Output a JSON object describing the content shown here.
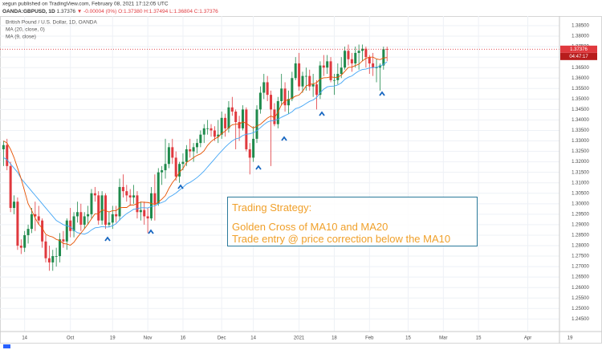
{
  "header": {
    "published": "xegun published on TradingView.com, February 08, 2021 17:12:05 UTC",
    "symbol": "OANDA:GBPUSD, 1D",
    "last": "1.37376",
    "change": "▼ -0.00004 (0%)",
    "ohlc": "O:1.37380 H:1.37494 L:1.36804 C:1.37376"
  },
  "annotation": {
    "title": "Trading Strategy:",
    "lines": [
      "Golden Cross of MA10 and MA20",
      "Trade entry @ price correction below the MA10"
    ]
  },
  "chart_data": {
    "type": "candlestick",
    "title": "British Pound / U.S. Dollar, 1D, OANDA",
    "up_color": "#1f8a4c",
    "down_color": "#e0393e",
    "grid": true,
    "last_price_label": "1.37376",
    "countdown": "04:47:17",
    "open": [
      1.326,
      1.328,
      1.318,
      1.298,
      1.301,
      1.28,
      1.279,
      1.285,
      1.288,
      1.295,
      1.294,
      1.292,
      1.282,
      1.274,
      1.272,
      1.275,
      1.275,
      1.283,
      1.282,
      1.292,
      1.287,
      1.294,
      1.296,
      1.29,
      1.294,
      1.295,
      1.305,
      1.304,
      1.292,
      1.304,
      1.29,
      1.291,
      1.295,
      1.294,
      1.308,
      1.306,
      1.304,
      1.303,
      1.304,
      1.296,
      1.297,
      1.294,
      1.293,
      1.305,
      1.3,
      1.315,
      1.316,
      1.319,
      1.327,
      1.322,
      1.313,
      1.319,
      1.32,
      1.326,
      1.325,
      1.327,
      1.329,
      1.333,
      1.336,
      1.336,
      1.335,
      1.332,
      1.333,
      1.341,
      1.336,
      1.346,
      1.344,
      1.339,
      1.336,
      1.345,
      1.326,
      1.322,
      1.331,
      1.345,
      1.353,
      1.358,
      1.352,
      1.345,
      1.338,
      1.349,
      1.355,
      1.347,
      1.35,
      1.36,
      1.367,
      1.356,
      1.361,
      1.361,
      1.356,
      1.357,
      1.352,
      1.366,
      1.365,
      1.368,
      1.359,
      1.359,
      1.362,
      1.365,
      1.373,
      1.369,
      1.367,
      1.372,
      1.373,
      1.374,
      1.37,
      1.367,
      1.365,
      1.365,
      1.366,
      1.3738
    ],
    "high": [
      1.33,
      1.331,
      1.32,
      1.304,
      1.303,
      1.283,
      1.287,
      1.29,
      1.298,
      1.301,
      1.299,
      1.293,
      1.285,
      1.28,
      1.278,
      1.279,
      1.286,
      1.287,
      1.293,
      1.298,
      1.296,
      1.301,
      1.3,
      1.296,
      1.299,
      1.307,
      1.308,
      1.306,
      1.306,
      1.305,
      1.296,
      1.299,
      1.299,
      1.312,
      1.314,
      1.309,
      1.307,
      1.309,
      1.306,
      1.301,
      1.301,
      1.298,
      1.308,
      1.314,
      1.317,
      1.318,
      1.331,
      1.329,
      1.331,
      1.325,
      1.32,
      1.324,
      1.328,
      1.331,
      1.329,
      1.331,
      1.335,
      1.338,
      1.34,
      1.338,
      1.337,
      1.34,
      1.344,
      1.343,
      1.349,
      1.351,
      1.345,
      1.342,
      1.347,
      1.346,
      1.329,
      1.337,
      1.347,
      1.356,
      1.362,
      1.361,
      1.354,
      1.348,
      1.351,
      1.362,
      1.358,
      1.354,
      1.363,
      1.37,
      1.372,
      1.363,
      1.365,
      1.364,
      1.362,
      1.359,
      1.368,
      1.371,
      1.371,
      1.37,
      1.362,
      1.367,
      1.37,
      1.375,
      1.376,
      1.372,
      1.375,
      1.376,
      1.376,
      1.375,
      1.371,
      1.372,
      1.369,
      1.367,
      1.375,
      1.37494
    ],
    "low": [
      1.318,
      1.316,
      1.296,
      1.295,
      1.278,
      1.276,
      1.277,
      1.281,
      1.286,
      1.287,
      1.29,
      1.279,
      1.272,
      1.268,
      1.268,
      1.27,
      1.272,
      1.279,
      1.278,
      1.284,
      1.284,
      1.291,
      1.287,
      1.288,
      1.29,
      1.293,
      1.301,
      1.29,
      1.29,
      1.288,
      1.289,
      1.288,
      1.291,
      1.292,
      1.303,
      1.301,
      1.299,
      1.3,
      1.293,
      1.292,
      1.29,
      1.286,
      1.292,
      1.292,
      1.299,
      1.309,
      1.312,
      1.317,
      1.319,
      1.311,
      1.31,
      1.316,
      1.318,
      1.322,
      1.32,
      1.324,
      1.327,
      1.329,
      1.333,
      1.332,
      1.33,
      1.329,
      1.331,
      1.332,
      1.334,
      1.342,
      1.326,
      1.33,
      1.335,
      1.325,
      1.314,
      1.32,
      1.329,
      1.343,
      1.35,
      1.349,
      1.318,
      1.337,
      1.336,
      1.347,
      1.344,
      1.343,
      1.349,
      1.359,
      1.354,
      1.353,
      1.354,
      1.354,
      1.351,
      1.345,
      1.35,
      1.361,
      1.362,
      1.358,
      1.352,
      1.357,
      1.36,
      1.364,
      1.366,
      1.363,
      1.365,
      1.364,
      1.368,
      1.365,
      1.362,
      1.361,
      1.358,
      1.354,
      1.364,
      1.36804
    ],
    "close": [
      1.328,
      1.318,
      1.298,
      1.301,
      1.28,
      1.279,
      1.285,
      1.288,
      1.295,
      1.294,
      1.292,
      1.282,
      1.274,
      1.272,
      1.275,
      1.275,
      1.283,
      1.282,
      1.292,
      1.287,
      1.294,
      1.296,
      1.29,
      1.294,
      1.295,
      1.305,
      1.304,
      1.292,
      1.304,
      1.29,
      1.291,
      1.295,
      1.294,
      1.308,
      1.306,
      1.304,
      1.303,
      1.304,
      1.296,
      1.297,
      1.294,
      1.293,
      1.305,
      1.3,
      1.315,
      1.316,
      1.319,
      1.327,
      1.322,
      1.313,
      1.319,
      1.32,
      1.326,
      1.325,
      1.327,
      1.329,
      1.333,
      1.336,
      1.336,
      1.335,
      1.332,
      1.333,
      1.341,
      1.336,
      1.346,
      1.344,
      1.339,
      1.336,
      1.345,
      1.326,
      1.322,
      1.331,
      1.345,
      1.353,
      1.358,
      1.352,
      1.345,
      1.338,
      1.349,
      1.355,
      1.347,
      1.35,
      1.36,
      1.367,
      1.356,
      1.361,
      1.361,
      1.356,
      1.357,
      1.352,
      1.366,
      1.365,
      1.368,
      1.359,
      1.359,
      1.362,
      1.365,
      1.373,
      1.369,
      1.367,
      1.372,
      1.373,
      1.374,
      1.37,
      1.367,
      1.365,
      1.365,
      1.366,
      1.3738,
      1.37376
    ],
    "series": [
      {
        "name": "MA (20, close, 0)",
        "color": "#42a5f5",
        "values": [
          1.322,
          1.321,
          1.319,
          1.317,
          1.315,
          1.312,
          1.31,
          1.308,
          1.306,
          1.304,
          1.302,
          1.3,
          1.298,
          1.296,
          1.294,
          1.292,
          1.291,
          1.29,
          1.2895,
          1.289,
          1.2873,
          1.2862,
          1.2858,
          1.2855,
          1.2862,
          1.2875,
          1.2885,
          1.2887,
          1.2891,
          1.2889,
          1.2889,
          1.2895,
          1.2905,
          1.2923,
          1.2939,
          1.2953,
          1.2963,
          1.2974,
          1.2976,
          1.2981,
          1.2981,
          1.298,
          1.2987,
          1.299,
          1.3,
          1.3006,
          1.3013,
          1.3031,
          1.304,
          1.3051,
          1.3065,
          1.3078,
          1.3094,
          1.3102,
          1.3113,
          1.3125,
          1.314,
          1.3156,
          1.3176,
          1.3195,
          1.3214,
          1.3234,
          1.3252,
          1.327,
          1.3286,
          1.33,
          1.331,
          1.3314,
          1.3326,
          1.3332,
          1.3334,
          1.3339,
          1.3349,
          1.3363,
          1.3378,
          1.339,
          1.3396,
          1.3397,
          1.3403,
          1.3413,
          1.3421,
          1.3429,
          1.3439,
          1.3454,
          1.3459,
          1.3468,
          1.3479,
          1.3489,
          1.3495,
          1.3508,
          1.353,
          1.3547,
          1.3558,
          1.3561,
          1.3562,
          1.3567,
          1.3577,
          1.3594,
          1.3604,
          1.361,
          1.3623,
          1.3634,
          1.3641,
          1.3643,
          1.3648,
          1.365,
          1.3652,
          1.3657,
          1.3666,
          1.3677
        ]
      },
      {
        "name": "MA (9, close)",
        "color": "#e65100",
        "values": [
          1.33,
          1.329,
          1.326,
          1.322,
          1.317,
          1.312,
          1.306,
          1.3,
          1.2969,
          1.2931,
          1.2902,
          1.2884,
          1.2854,
          1.2846,
          1.2841,
          1.283,
          1.2824,
          1.281,
          1.2808,
          1.2802,
          1.2816,
          1.284,
          1.286,
          1.2881,
          1.2903,
          1.2928,
          1.2952,
          1.2952,
          1.2971,
          1.2967,
          1.2961,
          1.2967,
          1.2967,
          1.2981,
          1.2982,
          1.2982,
          1.2994,
          1.2994,
          1.3001,
          1.3008,
          1.3007,
          1.3006,
          1.3002,
          1.2996,
          1.3008,
          1.3022,
          1.3039,
          1.3073,
          1.3101,
          1.3122,
          1.3151,
          1.3168,
          1.3197,
          1.3208,
          1.322,
          1.3231,
          1.3238,
          1.3253,
          1.3279,
          1.3297,
          1.331,
          1.3318,
          1.3336,
          1.3346,
          1.3364,
          1.3377,
          1.338,
          1.338,
          1.3391,
          1.3384,
          1.3372,
          1.3361,
          1.3371,
          1.3379,
          1.3394,
          1.3409,
          1.3419,
          1.3411,
          1.3437,
          1.3473,
          1.3491,
          1.3497,
          1.3504,
          1.3514,
          1.3519,
          1.3537,
          1.3562,
          1.357,
          1.3572,
          1.3578,
          1.3596,
          1.3601,
          1.3602,
          1.3606,
          1.3603,
          1.3604,
          1.3614,
          1.3632,
          1.3651,
          1.3652,
          1.366,
          1.3666,
          1.3682,
          1.3694,
          1.37,
          1.37,
          1.3691,
          1.3688,
          1.3696,
          1.3698
        ]
      }
    ],
    "xlim": [
      -1,
      158
    ],
    "xticks": [
      {
        "value": 6,
        "label": "14"
      },
      {
        "value": 19,
        "label": "Oct"
      },
      {
        "value": 31,
        "label": "19"
      },
      {
        "value": 41,
        "label": "Nov"
      },
      {
        "value": 51,
        "label": "16"
      },
      {
        "value": 62,
        "label": "Dec"
      },
      {
        "value": 71,
        "label": "14"
      },
      {
        "value": 84,
        "label": "2021"
      },
      {
        "value": 94,
        "label": "18"
      },
      {
        "value": 104,
        "label": "Feb"
      },
      {
        "value": 115,
        "label": "15"
      },
      {
        "value": 125,
        "label": "Mar"
      },
      {
        "value": 135,
        "label": "15"
      },
      {
        "value": 149,
        "label": "Apr"
      },
      {
        "value": 161,
        "label": "19"
      }
    ],
    "ylim": [
      1.239,
      1.3896
    ],
    "yticks": [
      {
        "value": 1.245,
        "label": "1.24500"
      },
      {
        "value": 1.25,
        "label": "1.25000"
      },
      {
        "value": 1.255,
        "label": "1.25500"
      },
      {
        "value": 1.26,
        "label": "1.26000"
      },
      {
        "value": 1.265,
        "label": "1.26500"
      },
      {
        "value": 1.27,
        "label": "1.27000"
      },
      {
        "value": 1.275,
        "label": "1.27500"
      },
      {
        "value": 1.28,
        "label": "1.28000"
      },
      {
        "value": 1.285,
        "label": "1.28500"
      },
      {
        "value": 1.29,
        "label": "1.29000"
      },
      {
        "value": 1.295,
        "label": "1.29500"
      },
      {
        "value": 1.3,
        "label": "1.30000"
      },
      {
        "value": 1.305,
        "label": "1.30500"
      },
      {
        "value": 1.31,
        "label": "1.31000"
      },
      {
        "value": 1.315,
        "label": "1.31500"
      },
      {
        "value": 1.32,
        "label": "1.32000"
      },
      {
        "value": 1.325,
        "label": "1.32500"
      },
      {
        "value": 1.33,
        "label": "1.33000"
      },
      {
        "value": 1.335,
        "label": "1.33500"
      },
      {
        "value": 1.34,
        "label": "1.34000"
      },
      {
        "value": 1.345,
        "label": "1.34500"
      },
      {
        "value": 1.35,
        "label": "1.35000"
      },
      {
        "value": 1.355,
        "label": "1.35500"
      },
      {
        "value": 1.36,
        "label": "1.36000"
      },
      {
        "value": 1.365,
        "label": "1.36500"
      },
      {
        "value": 1.37,
        "label": "1.37000"
      },
      {
        "value": 1.375,
        "label": "1.37500"
      },
      {
        "value": 1.38,
        "label": "1.38000"
      },
      {
        "value": 1.385,
        "label": "1.38500"
      }
    ]
  }
}
